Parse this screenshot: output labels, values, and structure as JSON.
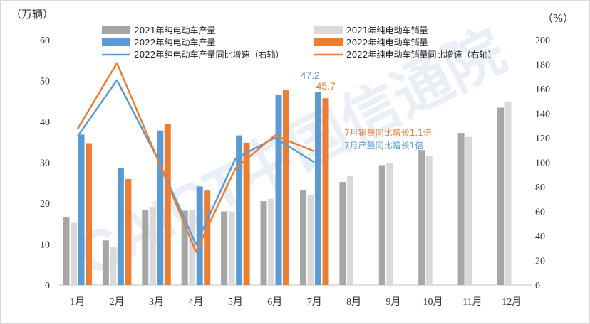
{
  "watermark": "CAICT中国信通院",
  "chart_data": {
    "type": "bar",
    "left_axis": {
      "unit": "（万辆）",
      "ylim": [
        0,
        60
      ],
      "ticks": [
        0,
        10,
        20,
        30,
        40,
        50,
        60
      ]
    },
    "right_axis": {
      "unit": "（%）",
      "ylim": [
        0,
        200
      ],
      "ticks": [
        0,
        20,
        40,
        60,
        80,
        100,
        120,
        140,
        160,
        180,
        200
      ]
    },
    "categories": [
      "1月",
      "2月",
      "3月",
      "4月",
      "5月",
      "6月",
      "7月",
      "8月",
      "9月",
      "10月",
      "11月",
      "12月"
    ],
    "series": [
      {
        "name": "2021年纯电动车产量",
        "type": "bar",
        "axis": "left",
        "color": "#a6a6a6",
        "values": [
          16.7,
          10.9,
          18.3,
          18.2,
          18.0,
          20.5,
          23.3,
          25.2,
          29.3,
          33.0,
          37.2,
          43.4
        ]
      },
      {
        "name": "2021年纯电动车销量",
        "type": "bar",
        "axis": "left",
        "color": "#d9d9d9",
        "values": [
          15.2,
          9.4,
          19.0,
          18.4,
          18.0,
          21.1,
          22.0,
          26.6,
          29.8,
          31.6,
          36.2,
          44.9
        ]
      },
      {
        "name": "2022年纯电动车产量",
        "type": "bar",
        "axis": "left",
        "color": "#5b9bd5",
        "values": [
          36.8,
          28.6,
          37.8,
          24.1,
          36.6,
          46.6,
          47.2,
          null,
          null,
          null,
          null,
          null
        ]
      },
      {
        "name": "2022年纯电动车销量",
        "type": "bar",
        "axis": "left",
        "color": "#ed7d31",
        "values": [
          34.7,
          25.9,
          39.4,
          23.1,
          34.8,
          47.7,
          45.7,
          null,
          null,
          null,
          null,
          null
        ]
      },
      {
        "name": "2022年纯电动车产量同比增速（右轴）",
        "type": "line",
        "axis": "right",
        "color": "#5b9bd5",
        "values": [
          121,
          167,
          105,
          33,
          103,
          120,
          100,
          null,
          null,
          null,
          null,
          null
        ]
      },
      {
        "name": "2022年纯电动车销量同比增速（右轴）",
        "type": "line",
        "axis": "right",
        "color": "#ed7d31",
        "values": [
          127,
          181,
          105,
          27,
          95,
          122,
          109,
          null,
          null,
          null,
          null,
          null
        ]
      }
    ],
    "data_labels": [
      {
        "text": "47.2",
        "color": "#5b9bd5"
      },
      {
        "text": "45.7",
        "color": "#ed7d31"
      }
    ],
    "annotations": [
      {
        "text": "7月销量同比增长1.1倍",
        "color": "#ed7d31"
      },
      {
        "text": "7月产量同比增长1倍",
        "color": "#5b9bd5"
      }
    ],
    "legend_position": "top",
    "grid": false
  }
}
